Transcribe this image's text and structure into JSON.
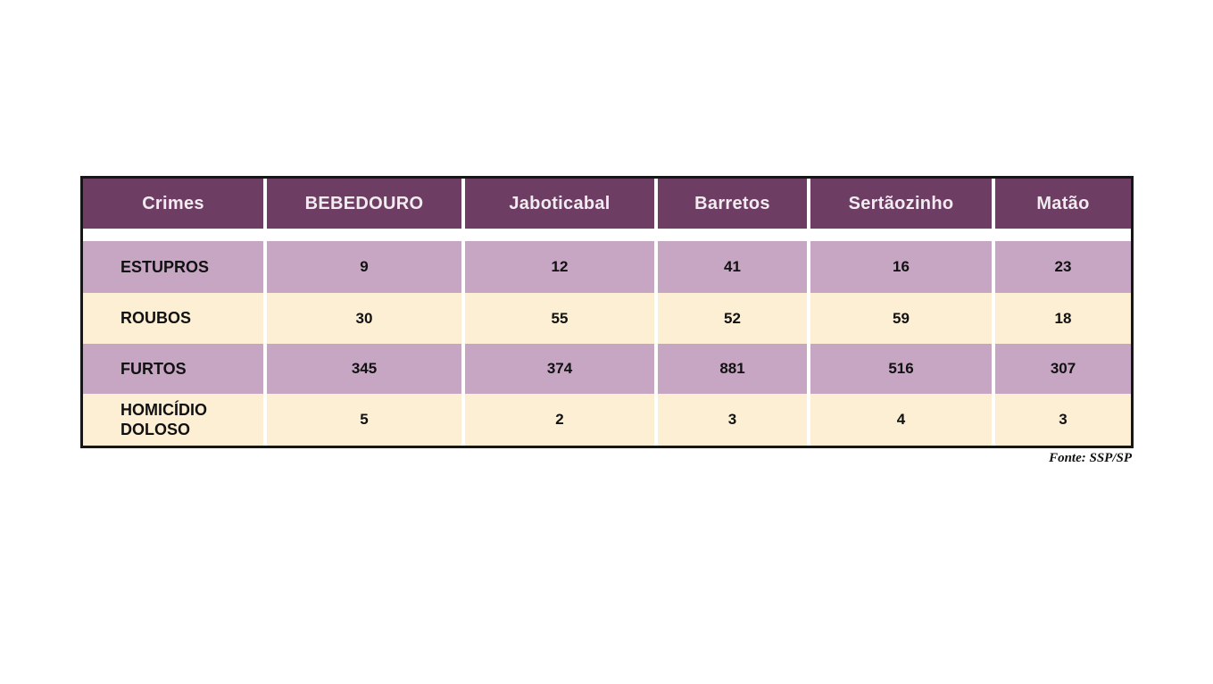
{
  "colors": {
    "header_bg": "#6e3d63",
    "header_text": "#f2ecf1",
    "row_purple": "#c7a6c4",
    "row_cream": "#fcefd4",
    "body_text": "#111111",
    "border": "#161616",
    "separator": "#ffffff"
  },
  "chart_data": {
    "type": "table",
    "columns": [
      "Crimes",
      "BEBEDOURO",
      "Jaboticabal",
      "Barretos",
      "Sertãozinho",
      "Matão"
    ],
    "rows": [
      {
        "label": "ESTUPROS",
        "values": [
          9,
          12,
          41,
          16,
          23
        ]
      },
      {
        "label": "ROUBOS",
        "values": [
          30,
          55,
          52,
          59,
          18
        ]
      },
      {
        "label": "FURTOS",
        "values": [
          345,
          374,
          881,
          516,
          307
        ]
      },
      {
        "label": "HOMICÍDIO DOLOSO",
        "values": [
          5,
          2,
          3,
          4,
          3
        ]
      }
    ],
    "source": "Fonte: SSP/SP",
    "layout": {
      "header_style": "dark-plum, white bold text, centered",
      "row_striping": "purple / cream alternating",
      "grid": "white vertical separators, black outer border"
    }
  }
}
